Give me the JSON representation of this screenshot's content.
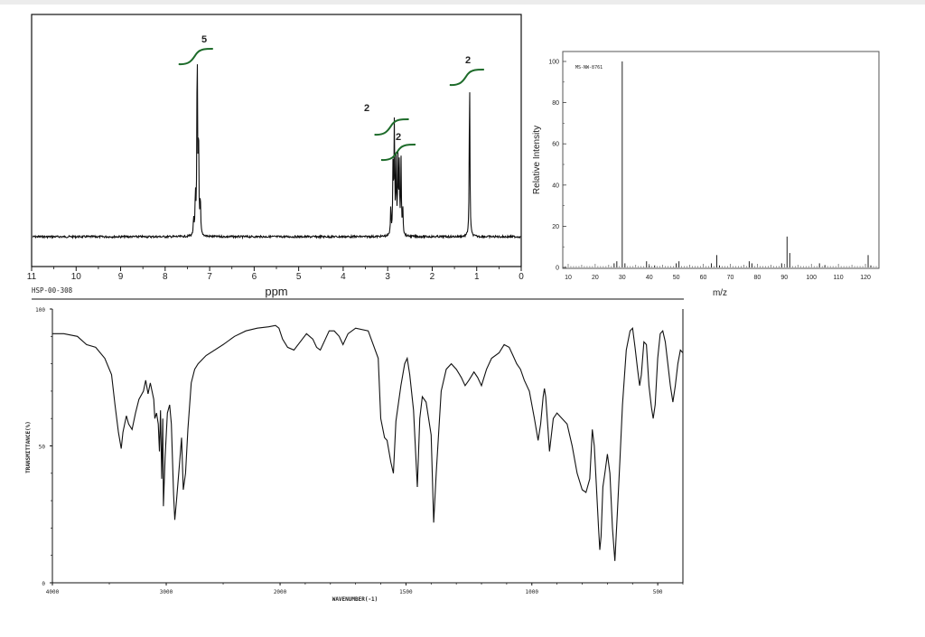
{
  "chart_data": [
    {
      "type": "line",
      "kind": "1H NMR spectrum",
      "xlabel": "ppm",
      "xlim": [
        11,
        0
      ],
      "ticks": [
        "11",
        "10",
        "9",
        "8",
        "7",
        "6",
        "5",
        "4",
        "3",
        "2",
        "1",
        "0"
      ],
      "peaks": [
        {
          "ppm": 7.28,
          "height": 0.96
        },
        {
          "ppm": 7.25,
          "height": 0.5
        },
        {
          "ppm": 7.32,
          "height": 0.2
        },
        {
          "ppm": 7.21,
          "height": 0.18
        },
        {
          "ppm": 7.36,
          "height": 0.08
        },
        {
          "ppm": 2.93,
          "height": 0.14
        },
        {
          "ppm": 2.88,
          "height": 0.34
        },
        {
          "ppm": 2.85,
          "height": 0.55
        },
        {
          "ppm": 2.81,
          "height": 0.36
        },
        {
          "ppm": 2.77,
          "height": 0.36
        },
        {
          "ppm": 2.74,
          "height": 0.33
        },
        {
          "ppm": 2.7,
          "height": 0.37
        },
        {
          "ppm": 2.66,
          "height": 0.13
        },
        {
          "ppm": 1.16,
          "height": 0.8
        }
      ],
      "integrations": [
        {
          "ppm": 7.25,
          "label": "5"
        },
        {
          "ppm": 2.85,
          "label": "2"
        },
        {
          "ppm": 2.7,
          "label": "2"
        },
        {
          "ppm": 1.16,
          "label": "2"
        }
      ],
      "code": "HSP-00-308"
    },
    {
      "type": "bar",
      "kind": "mass spectrum",
      "xlabel": "m/z",
      "ylabel": "Relative Intensity",
      "id_label": "MS-NW-8761",
      "xlim": [
        8,
        125
      ],
      "ylim": [
        0,
        100
      ],
      "xticks": [
        "10",
        "20",
        "30",
        "40",
        "50",
        "60",
        "70",
        "80",
        "90",
        "100",
        "110",
        "120"
      ],
      "yticks": [
        "0",
        "20",
        "40",
        "60",
        "80",
        "100"
      ],
      "peaks": [
        {
          "mz": 27,
          "intensity": 2
        },
        {
          "mz": 28,
          "intensity": 3
        },
        {
          "mz": 30,
          "intensity": 100
        },
        {
          "mz": 31,
          "intensity": 2
        },
        {
          "mz": 39,
          "intensity": 3
        },
        {
          "mz": 40,
          "intensity": 1
        },
        {
          "mz": 42,
          "intensity": 1
        },
        {
          "mz": 50,
          "intensity": 2
        },
        {
          "mz": 51,
          "intensity": 3
        },
        {
          "mz": 63,
          "intensity": 2
        },
        {
          "mz": 65,
          "intensity": 6
        },
        {
          "mz": 66,
          "intensity": 1
        },
        {
          "mz": 77,
          "intensity": 3
        },
        {
          "mz": 78,
          "intensity": 2
        },
        {
          "mz": 89,
          "intensity": 2
        },
        {
          "mz": 91,
          "intensity": 15
        },
        {
          "mz": 92,
          "intensity": 7
        },
        {
          "mz": 103,
          "intensity": 2
        },
        {
          "mz": 105,
          "intensity": 1
        },
        {
          "mz": 121,
          "intensity": 6
        },
        {
          "mz": 122,
          "intensity": 1
        }
      ]
    },
    {
      "type": "line",
      "kind": "IR spectrum",
      "xlabel": "WAVENUMBER(-1)",
      "ylabel": "TRANSMITTANCE(%)",
      "xlim": [
        4000,
        400
      ],
      "ylim": [
        0,
        100
      ],
      "xticks": [
        "4000",
        "3000",
        "2000",
        "1500",
        "1000",
        "500"
      ],
      "yticks": [
        "0",
        "50",
        "100"
      ],
      "points": [
        [
          4000,
          91
        ],
        [
          3900,
          91
        ],
        [
          3780,
          90
        ],
        [
          3700,
          87
        ],
        [
          3620,
          86
        ],
        [
          3540,
          82
        ],
        [
          3480,
          76
        ],
        [
          3450,
          65
        ],
        [
          3420,
          55
        ],
        [
          3395,
          49
        ],
        [
          3380,
          55
        ],
        [
          3350,
          61
        ],
        [
          3330,
          58
        ],
        [
          3300,
          56
        ],
        [
          3270,
          62
        ],
        [
          3240,
          67
        ],
        [
          3200,
          70
        ],
        [
          3180,
          74
        ],
        [
          3160,
          69
        ],
        [
          3140,
          73
        ],
        [
          3110,
          67
        ],
        [
          3100,
          60
        ],
        [
          3085,
          62
        ],
        [
          3070,
          58
        ],
        [
          3060,
          48
        ],
        [
          3050,
          63
        ],
        [
          3040,
          38
        ],
        [
          3030,
          60
        ],
        [
          3025,
          28
        ],
        [
          3010,
          46
        ],
        [
          2990,
          62
        ],
        [
          2970,
          65
        ],
        [
          2955,
          58
        ],
        [
          2935,
          32
        ],
        [
          2925,
          23
        ],
        [
          2910,
          30
        ],
        [
          2880,
          45
        ],
        [
          2865,
          53
        ],
        [
          2850,
          34
        ],
        [
          2830,
          40
        ],
        [
          2810,
          56
        ],
        [
          2780,
          73
        ],
        [
          2750,
          78
        ],
        [
          2720,
          80
        ],
        [
          2650,
          83
        ],
        [
          2500,
          87
        ],
        [
          2400,
          90
        ],
        [
          2300,
          92
        ],
        [
          2200,
          93
        ],
        [
          2100,
          93.5
        ],
        [
          2040,
          94
        ],
        [
          2010,
          93
        ],
        [
          1990,
          89
        ],
        [
          1970,
          86
        ],
        [
          1945,
          85
        ],
        [
          1920,
          88
        ],
        [
          1895,
          91
        ],
        [
          1870,
          89
        ],
        [
          1855,
          86
        ],
        [
          1840,
          85
        ],
        [
          1820,
          89
        ],
        [
          1805,
          92
        ],
        [
          1785,
          92
        ],
        [
          1765,
          90
        ],
        [
          1750,
          87
        ],
        [
          1730,
          91
        ],
        [
          1700,
          93
        ],
        [
          1650,
          92
        ],
        [
          1610,
          82
        ],
        [
          1600,
          60
        ],
        [
          1585,
          53
        ],
        [
          1575,
          52
        ],
        [
          1560,
          44
        ],
        [
          1550,
          40
        ],
        [
          1540,
          59
        ],
        [
          1520,
          72
        ],
        [
          1505,
          80
        ],
        [
          1495,
          82
        ],
        [
          1485,
          76
        ],
        [
          1470,
          63
        ],
        [
          1455,
          35
        ],
        [
          1445,
          60
        ],
        [
          1435,
          68
        ],
        [
          1420,
          66
        ],
        [
          1400,
          54
        ],
        [
          1390,
          22
        ],
        [
          1380,
          40
        ],
        [
          1360,
          70
        ],
        [
          1340,
          78
        ],
        [
          1320,
          80
        ],
        [
          1300,
          78
        ],
        [
          1280,
          75
        ],
        [
          1265,
          72
        ],
        [
          1250,
          74
        ],
        [
          1230,
          77
        ],
        [
          1215,
          75
        ],
        [
          1200,
          72
        ],
        [
          1180,
          78
        ],
        [
          1160,
          82
        ],
        [
          1130,
          84
        ],
        [
          1110,
          87
        ],
        [
          1090,
          86
        ],
        [
          1075,
          83
        ],
        [
          1060,
          80
        ],
        [
          1045,
          78
        ],
        [
          1030,
          74
        ],
        [
          1010,
          70
        ],
        [
          990,
          60
        ],
        [
          975,
          52
        ],
        [
          965,
          58
        ],
        [
          955,
          68
        ],
        [
          950,
          71
        ],
        [
          945,
          68
        ],
        [
          935,
          55
        ],
        [
          930,
          48
        ],
        [
          925,
          52
        ],
        [
          915,
          60
        ],
        [
          900,
          62
        ],
        [
          880,
          60
        ],
        [
          860,
          58
        ],
        [
          840,
          50
        ],
        [
          820,
          40
        ],
        [
          800,
          34
        ],
        [
          785,
          33
        ],
        [
          770,
          38
        ],
        [
          760,
          56
        ],
        [
          752,
          50
        ],
        [
          745,
          38
        ],
        [
          735,
          20
        ],
        [
          730,
          12
        ],
        [
          725,
          17
        ],
        [
          718,
          35
        ],
        [
          710,
          40
        ],
        [
          700,
          47
        ],
        [
          690,
          40
        ],
        [
          680,
          20
        ],
        [
          670,
          8
        ],
        [
          660,
          26
        ],
        [
          650,
          45
        ],
        [
          640,
          65
        ],
        [
          625,
          85
        ],
        [
          610,
          92
        ],
        [
          600,
          93
        ],
        [
          590,
          86
        ],
        [
          580,
          78
        ],
        [
          572,
          72
        ],
        [
          565,
          76
        ],
        [
          555,
          88
        ],
        [
          545,
          87
        ],
        [
          535,
          72
        ],
        [
          525,
          64
        ],
        [
          518,
          60
        ],
        [
          510,
          65
        ],
        [
          500,
          82
        ],
        [
          490,
          91
        ],
        [
          480,
          92
        ],
        [
          470,
          88
        ],
        [
          460,
          80
        ],
        [
          450,
          72
        ],
        [
          440,
          66
        ],
        [
          430,
          72
        ],
        [
          420,
          80
        ],
        [
          410,
          85
        ],
        [
          400,
          84
        ]
      ]
    }
  ]
}
